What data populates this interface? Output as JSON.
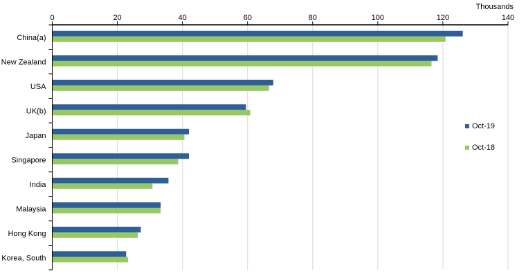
{
  "chart_data": {
    "type": "bar",
    "orientation": "horizontal",
    "unit_label": "Thousands",
    "categories": [
      "China(a)",
      "New Zealand",
      "USA",
      "UK(b)",
      "Japan",
      "Singapore",
      "India",
      "Malaysia",
      "Hong Kong",
      "Korea, South"
    ],
    "series": [
      {
        "name": "Oct-19",
        "color": "#2e5f97",
        "values": [
          126.1,
          118.4,
          67.9,
          59.5,
          42.0,
          42.0,
          35.7,
          33.3,
          27.2,
          22.7
        ]
      },
      {
        "name": "Oct-18",
        "color": "#97c862",
        "values": [
          120.8,
          116.5,
          66.6,
          60.8,
          40.6,
          38.7,
          30.8,
          33.3,
          26.3,
          23.3
        ]
      }
    ],
    "xlim": [
      0,
      140
    ],
    "xticks": [
      0,
      20,
      40,
      60,
      80,
      100,
      120,
      140
    ],
    "axis_position": "top",
    "grid": true,
    "legend_placement": "right"
  }
}
